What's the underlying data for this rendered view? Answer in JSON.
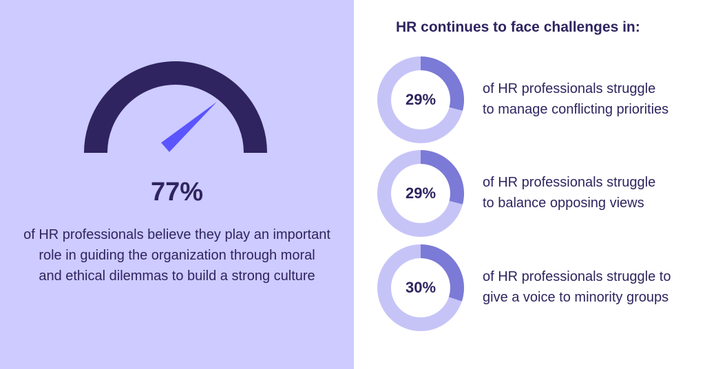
{
  "colors": {
    "panel_bg": "#cdcbff",
    "dark": "#2f2460",
    "needle": "#5a55ff",
    "ring_track": "#c6c4f7",
    "ring_fill": "#7b7ad6"
  },
  "chart_data": [
    {
      "type": "gauge",
      "value": 77,
      "value_label": "77%",
      "description": "of HR professionals believe they play an important role in guiding the organization through moral and ethical dilemmas to build a strong culture",
      "description_lines": [
        "of HR professionals believe they play an important",
        "role in guiding the organization through moral",
        "and ethical dilemmas to build a strong culture"
      ]
    },
    {
      "type": "donut",
      "title": "HR continues to face challenges in:",
      "items": [
        {
          "value": 29,
          "label": "29%",
          "lines": [
            "of HR professionals struggle",
            "to manage conflicting priorities"
          ]
        },
        {
          "value": 29,
          "label": "29%",
          "lines": [
            "of HR professionals struggle",
            "to balance opposing views"
          ]
        },
        {
          "value": 30,
          "label": "30%",
          "lines": [
            "of HR professionals struggle to",
            "give a voice to minority groups"
          ]
        }
      ]
    }
  ]
}
